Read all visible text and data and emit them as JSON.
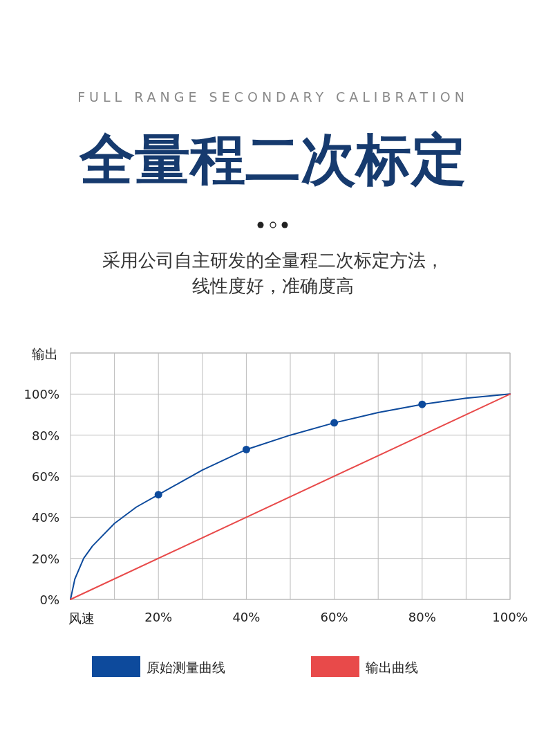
{
  "chart_data": {
    "type": "line",
    "title": "全量程二次标定",
    "subtitle": "FULL RANGE SECONDARY CALIBRATION",
    "annotations": [
      "采用公司自主研发的全量程二次标定方法，",
      "线性度好，准确度高"
    ],
    "xlabel": "风速",
    "ylabel": "输出",
    "xlim": [
      0,
      100
    ],
    "ylim": [
      0,
      120
    ],
    "xticks": [
      {
        "value": 10,
        "label": null
      },
      {
        "value": 20,
        "label": "20%"
      },
      {
        "value": 30,
        "label": null
      },
      {
        "value": 40,
        "label": "40%"
      },
      {
        "value": 50,
        "label": null
      },
      {
        "value": 60,
        "label": "60%"
      },
      {
        "value": 70,
        "label": null
      },
      {
        "value": 80,
        "label": "80%"
      },
      {
        "value": 90,
        "label": null
      },
      {
        "value": 100,
        "label": "100%"
      }
    ],
    "yticks": [
      {
        "value": 0,
        "label": "0%"
      },
      {
        "value": 20,
        "label": "20%"
      },
      {
        "value": 40,
        "label": "40%"
      },
      {
        "value": 60,
        "label": "60%"
      },
      {
        "value": 80,
        "label": "80%"
      },
      {
        "value": 100,
        "label": "100%"
      },
      {
        "value": 120,
        "label": null
      }
    ],
    "grid": true,
    "legend": "bottom",
    "series": [
      {
        "name": "原始测量曲线",
        "color": "#0d4a9c",
        "x": [
          0,
          1,
          3,
          5,
          10,
          15,
          20,
          25,
          30,
          40,
          50,
          60,
          70,
          80,
          90,
          100
        ],
        "values": [
          0,
          10,
          20,
          26,
          37,
          45,
          51,
          57,
          63,
          73,
          80,
          86,
          91,
          95,
          98,
          100
        ]
      },
      {
        "type": "scatter",
        "marker": "circle",
        "color": "#0d4a9c",
        "x": [
          20,
          40,
          60,
          80
        ],
        "values": [
          51,
          73,
          86,
          95
        ]
      },
      {
        "name": "输出曲线",
        "color": "#e84a4a",
        "x": [
          0,
          100
        ],
        "values": [
          0,
          100
        ]
      }
    ]
  }
}
